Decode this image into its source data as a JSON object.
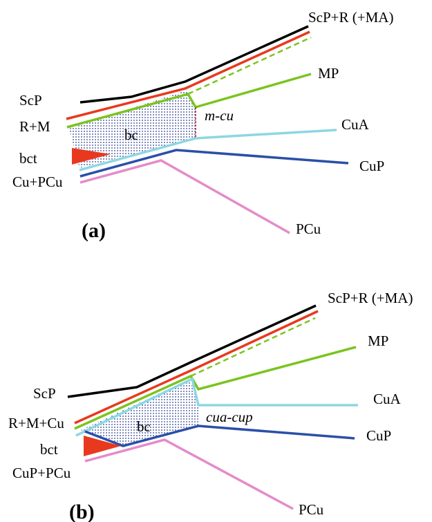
{
  "colors": {
    "scp": "#000000",
    "r": "#e8391f",
    "mp": "#7ac41f",
    "cua": "#8dd7e2",
    "cup": "#2b4fa8",
    "pcu": "#e58bc9",
    "crossvein": "#b22222",
    "bc_dots": "#2a3b8f"
  },
  "panel_a": {
    "panel_label": "(a)",
    "labels": {
      "scp_r_ma": "ScP+R (+MA)",
      "mp": "MP",
      "scp": "ScP",
      "r_m": "R+M",
      "m_cu": "m-cu",
      "bc": "bc",
      "cua": "CuA",
      "bct": "bct",
      "cup": "CuP",
      "cu_pcu": "Cu+PCu",
      "pcu": "PCu"
    }
  },
  "panel_b": {
    "panel_label": "(b)",
    "labels": {
      "scp_r_ma": "ScP+R (+MA)",
      "mp": "MP",
      "scp": "ScP",
      "cua": "CuA",
      "r_m_cu": "R+M+Cu",
      "cua_cup": "cua-cup",
      "bc": "bc",
      "cup": "CuP",
      "bct": "bct",
      "cup_pcu": "CuP+PCu",
      "pcu": "PCu"
    }
  }
}
